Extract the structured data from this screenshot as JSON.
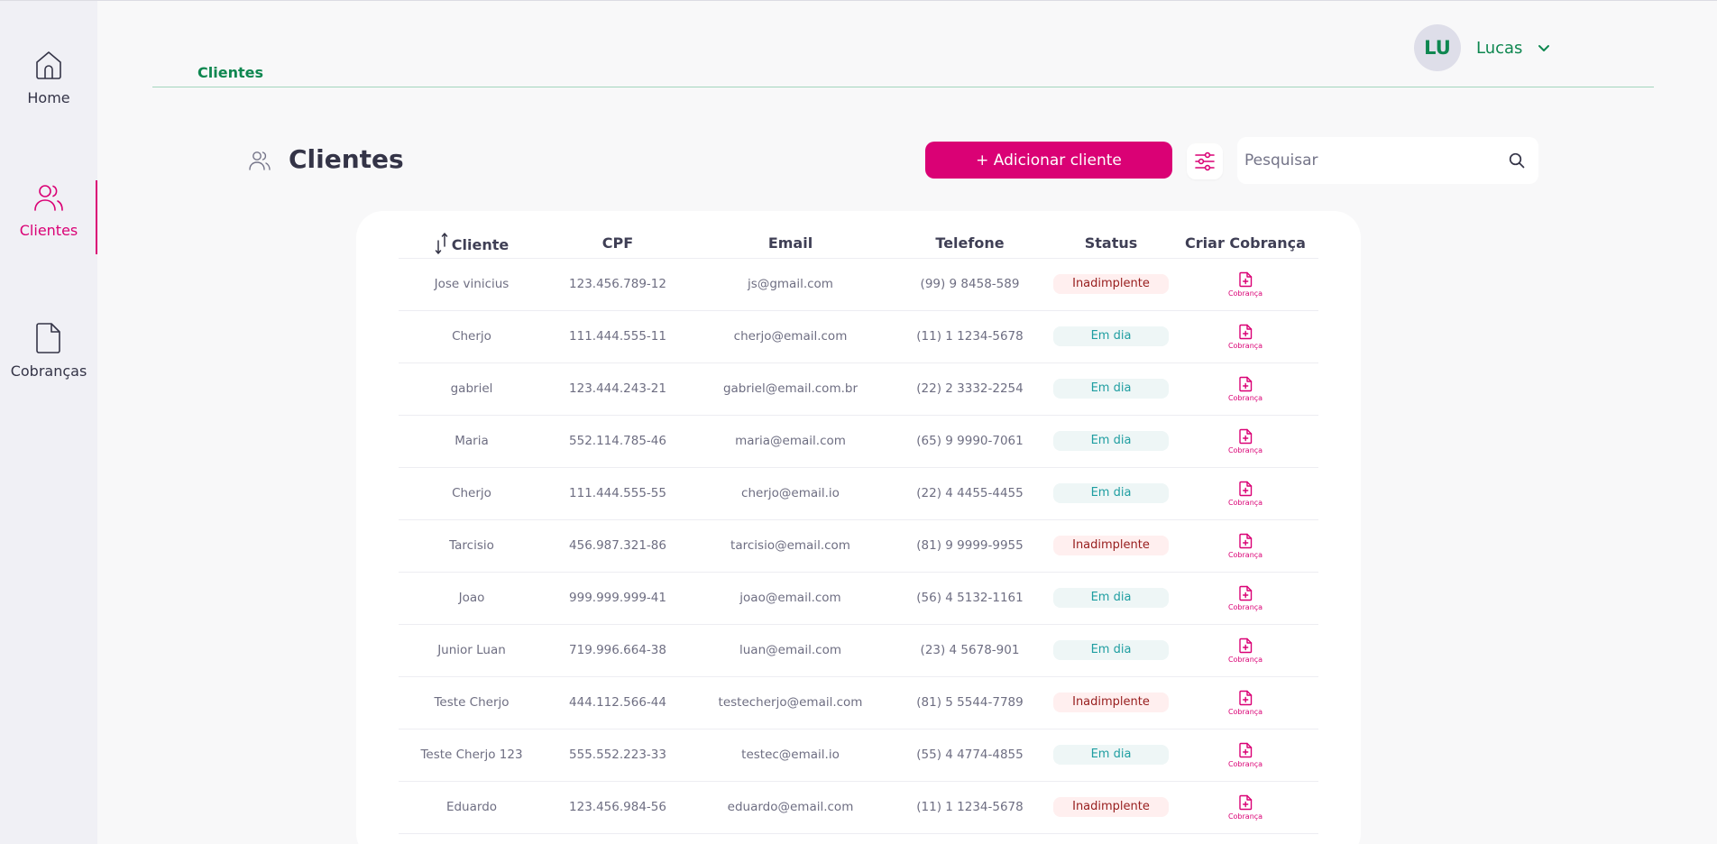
{
  "sidebar": {
    "items": [
      {
        "label": "Home",
        "icon": "home-icon",
        "active": false
      },
      {
        "label": "Clientes",
        "icon": "users-icon",
        "active": true
      },
      {
        "label": "Cobranças",
        "icon": "document-icon",
        "active": false
      }
    ]
  },
  "header": {
    "breadcrumb": "Clientes",
    "user": {
      "initials": "LU",
      "name": "Lucas"
    }
  },
  "page": {
    "title": "Clientes",
    "add_button_label": "+ Adicionar cliente",
    "search_placeholder": "Pesquisar"
  },
  "table": {
    "columns": [
      "Cliente",
      "CPF",
      "Email",
      "Telefone",
      "Status",
      "Criar Cobrança"
    ],
    "charge_label": "Cobrança",
    "rows": [
      {
        "name": "Jose vinicius",
        "cpf": "123.456.789-12",
        "email": "js@gmail.com",
        "phone": "(99) 9 8458-589",
        "status": "Inadimplente"
      },
      {
        "name": "Cherjo",
        "cpf": "111.444.555-11",
        "email": "cherjo@email.com",
        "phone": "(11) 1 1234-5678",
        "status": "Em dia"
      },
      {
        "name": "gabriel",
        "cpf": "123.444.243-21",
        "email": "gabriel@email.com.br",
        "phone": "(22) 2 3332-2254",
        "status": "Em dia"
      },
      {
        "name": "Maria",
        "cpf": "552.114.785-46",
        "email": "maria@email.com",
        "phone": "(65) 9 9990-7061",
        "status": "Em dia"
      },
      {
        "name": "Cherjo",
        "cpf": "111.444.555-55",
        "email": "cherjo@email.io",
        "phone": "(22) 4 4455-4455",
        "status": "Em dia"
      },
      {
        "name": "Tarcisio",
        "cpf": "456.987.321-86",
        "email": "tarcisio@email.com",
        "phone": "(81) 9 9999-9955",
        "status": "Inadimplente"
      },
      {
        "name": "Joao",
        "cpf": "999.999.999-41",
        "email": "joao@email.com",
        "phone": "(56) 4 5132-1161",
        "status": "Em dia"
      },
      {
        "name": "Junior Luan",
        "cpf": "719.996.664-38",
        "email": "luan@email.com",
        "phone": "(23) 4 5678-901",
        "status": "Em dia"
      },
      {
        "name": "Teste Cherjo",
        "cpf": "444.112.566-44",
        "email": "testecherjo@email.com",
        "phone": "(81) 5 5544-7789",
        "status": "Inadimplente"
      },
      {
        "name": "Teste Cherjo 123",
        "cpf": "555.552.223-33",
        "email": "testec@email.io",
        "phone": "(55) 4 4774-4855",
        "status": "Em dia"
      },
      {
        "name": "Eduardo",
        "cpf": "123.456.984-56",
        "email": "eduardo@email.com",
        "phone": "(11) 1 1234-5678",
        "status": "Inadimplente"
      }
    ]
  },
  "colors": {
    "accent": "#da0175",
    "brand_green": "#0e8750",
    "status_late_text": "#971d1d",
    "status_ok_text": "#1f9ea1"
  }
}
